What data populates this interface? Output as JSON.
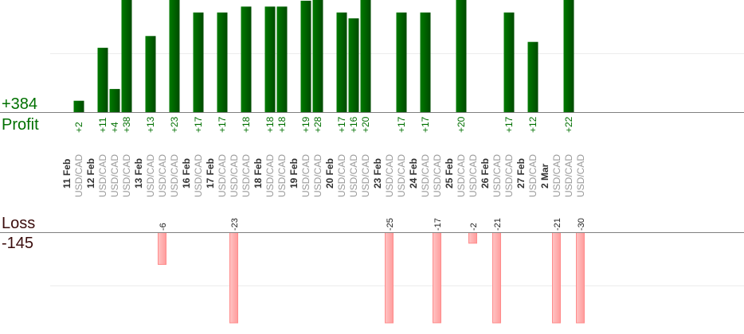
{
  "chart_data": {
    "type": "bar",
    "profit_label": "Profit",
    "profit_total": "+384",
    "loss_label": "Loss",
    "loss_total": "-145",
    "colors": {
      "profit": "#006400",
      "profit_text": "#007000",
      "loss": "#ffaaaa",
      "loss_border": "#ff8c8c",
      "loss_text": "#3a0c0c"
    },
    "grid": true,
    "dates": [
      {
        "label": "11 Feb",
        "trades": [
          {
            "symbol": "USD/CAD",
            "value": 2,
            "label": "+2"
          }
        ]
      },
      {
        "label": "12 Feb",
        "trades": [
          {
            "symbol": "USD/CAD",
            "value": 11,
            "label": "+11"
          },
          {
            "symbol": "USD/CAD",
            "value": 4,
            "label": "+4"
          },
          {
            "symbol": "USD/CAD",
            "value": 38,
            "label": "+38"
          }
        ]
      },
      {
        "label": "13 Feb",
        "trades": [
          {
            "symbol": "USD/CAD",
            "value": 13,
            "label": "+13"
          },
          {
            "symbol": "USD/CAD",
            "value": -6,
            "label": "-6"
          },
          {
            "symbol": "USD/CAD",
            "value": 23,
            "label": "+23"
          }
        ]
      },
      {
        "label": "16 Feb",
        "trades": [
          {
            "symbol": "USD/CAD",
            "value": 17,
            "label": "+17"
          }
        ]
      },
      {
        "label": "17 Feb",
        "trades": [
          {
            "symbol": "USD/CAD",
            "value": 17,
            "label": "+17"
          },
          {
            "symbol": "USD/CAD",
            "value": -23,
            "label": "-23"
          },
          {
            "symbol": "USD/CAD",
            "value": 18,
            "label": "+18"
          }
        ]
      },
      {
        "label": "18 Feb",
        "trades": [
          {
            "symbol": "USD/CAD",
            "value": 18,
            "label": "+18"
          },
          {
            "symbol": "USD/CAD",
            "value": 18,
            "label": "+18"
          }
        ]
      },
      {
        "label": "19 Feb",
        "trades": [
          {
            "symbol": "USD/CAD",
            "value": 19,
            "label": "+19"
          },
          {
            "symbol": "USD/CAD",
            "value": 28,
            "label": "+28"
          }
        ]
      },
      {
        "label": "20 Feb",
        "trades": [
          {
            "symbol": "USD/CAD",
            "value": 17,
            "label": "+17"
          },
          {
            "symbol": "USD/CAD",
            "value": 16,
            "label": "+16"
          },
          {
            "symbol": "USD/CAD",
            "value": 20,
            "label": "+20"
          }
        ]
      },
      {
        "label": "23 Feb",
        "trades": [
          {
            "symbol": "USD/CAD",
            "value": -25,
            "label": "-25"
          },
          {
            "symbol": "USD/CAD",
            "value": 17,
            "label": "+17"
          }
        ]
      },
      {
        "label": "24 Feb",
        "trades": [
          {
            "symbol": "USD/CAD",
            "value": 17,
            "label": "+17"
          },
          {
            "symbol": "USD/CAD",
            "value": -17,
            "label": "-17"
          }
        ]
      },
      {
        "label": "25 Feb",
        "trades": [
          {
            "symbol": "USD/CAD",
            "value": 20,
            "label": "+20"
          },
          {
            "symbol": "USD/CAD",
            "value": -2,
            "label": "-2"
          }
        ]
      },
      {
        "label": "26 Feb",
        "trades": [
          {
            "symbol": "USD/CAD",
            "value": -21,
            "label": "-21"
          },
          {
            "symbol": "USD/CAD",
            "value": 17,
            "label": "+17"
          }
        ]
      },
      {
        "label": "27 Feb",
        "trades": [
          {
            "symbol": "USD/CAD",
            "value": 12,
            "label": "+12"
          }
        ]
      },
      {
        "label": "2 Mar",
        "trades": [
          {
            "symbol": "USD/CAD",
            "value": -21,
            "label": "-21"
          },
          {
            "symbol": "USD/CAD",
            "value": 22,
            "label": "+22"
          },
          {
            "symbol": "USD/CAD",
            "value": -30,
            "label": "-30"
          }
        ]
      }
    ]
  }
}
